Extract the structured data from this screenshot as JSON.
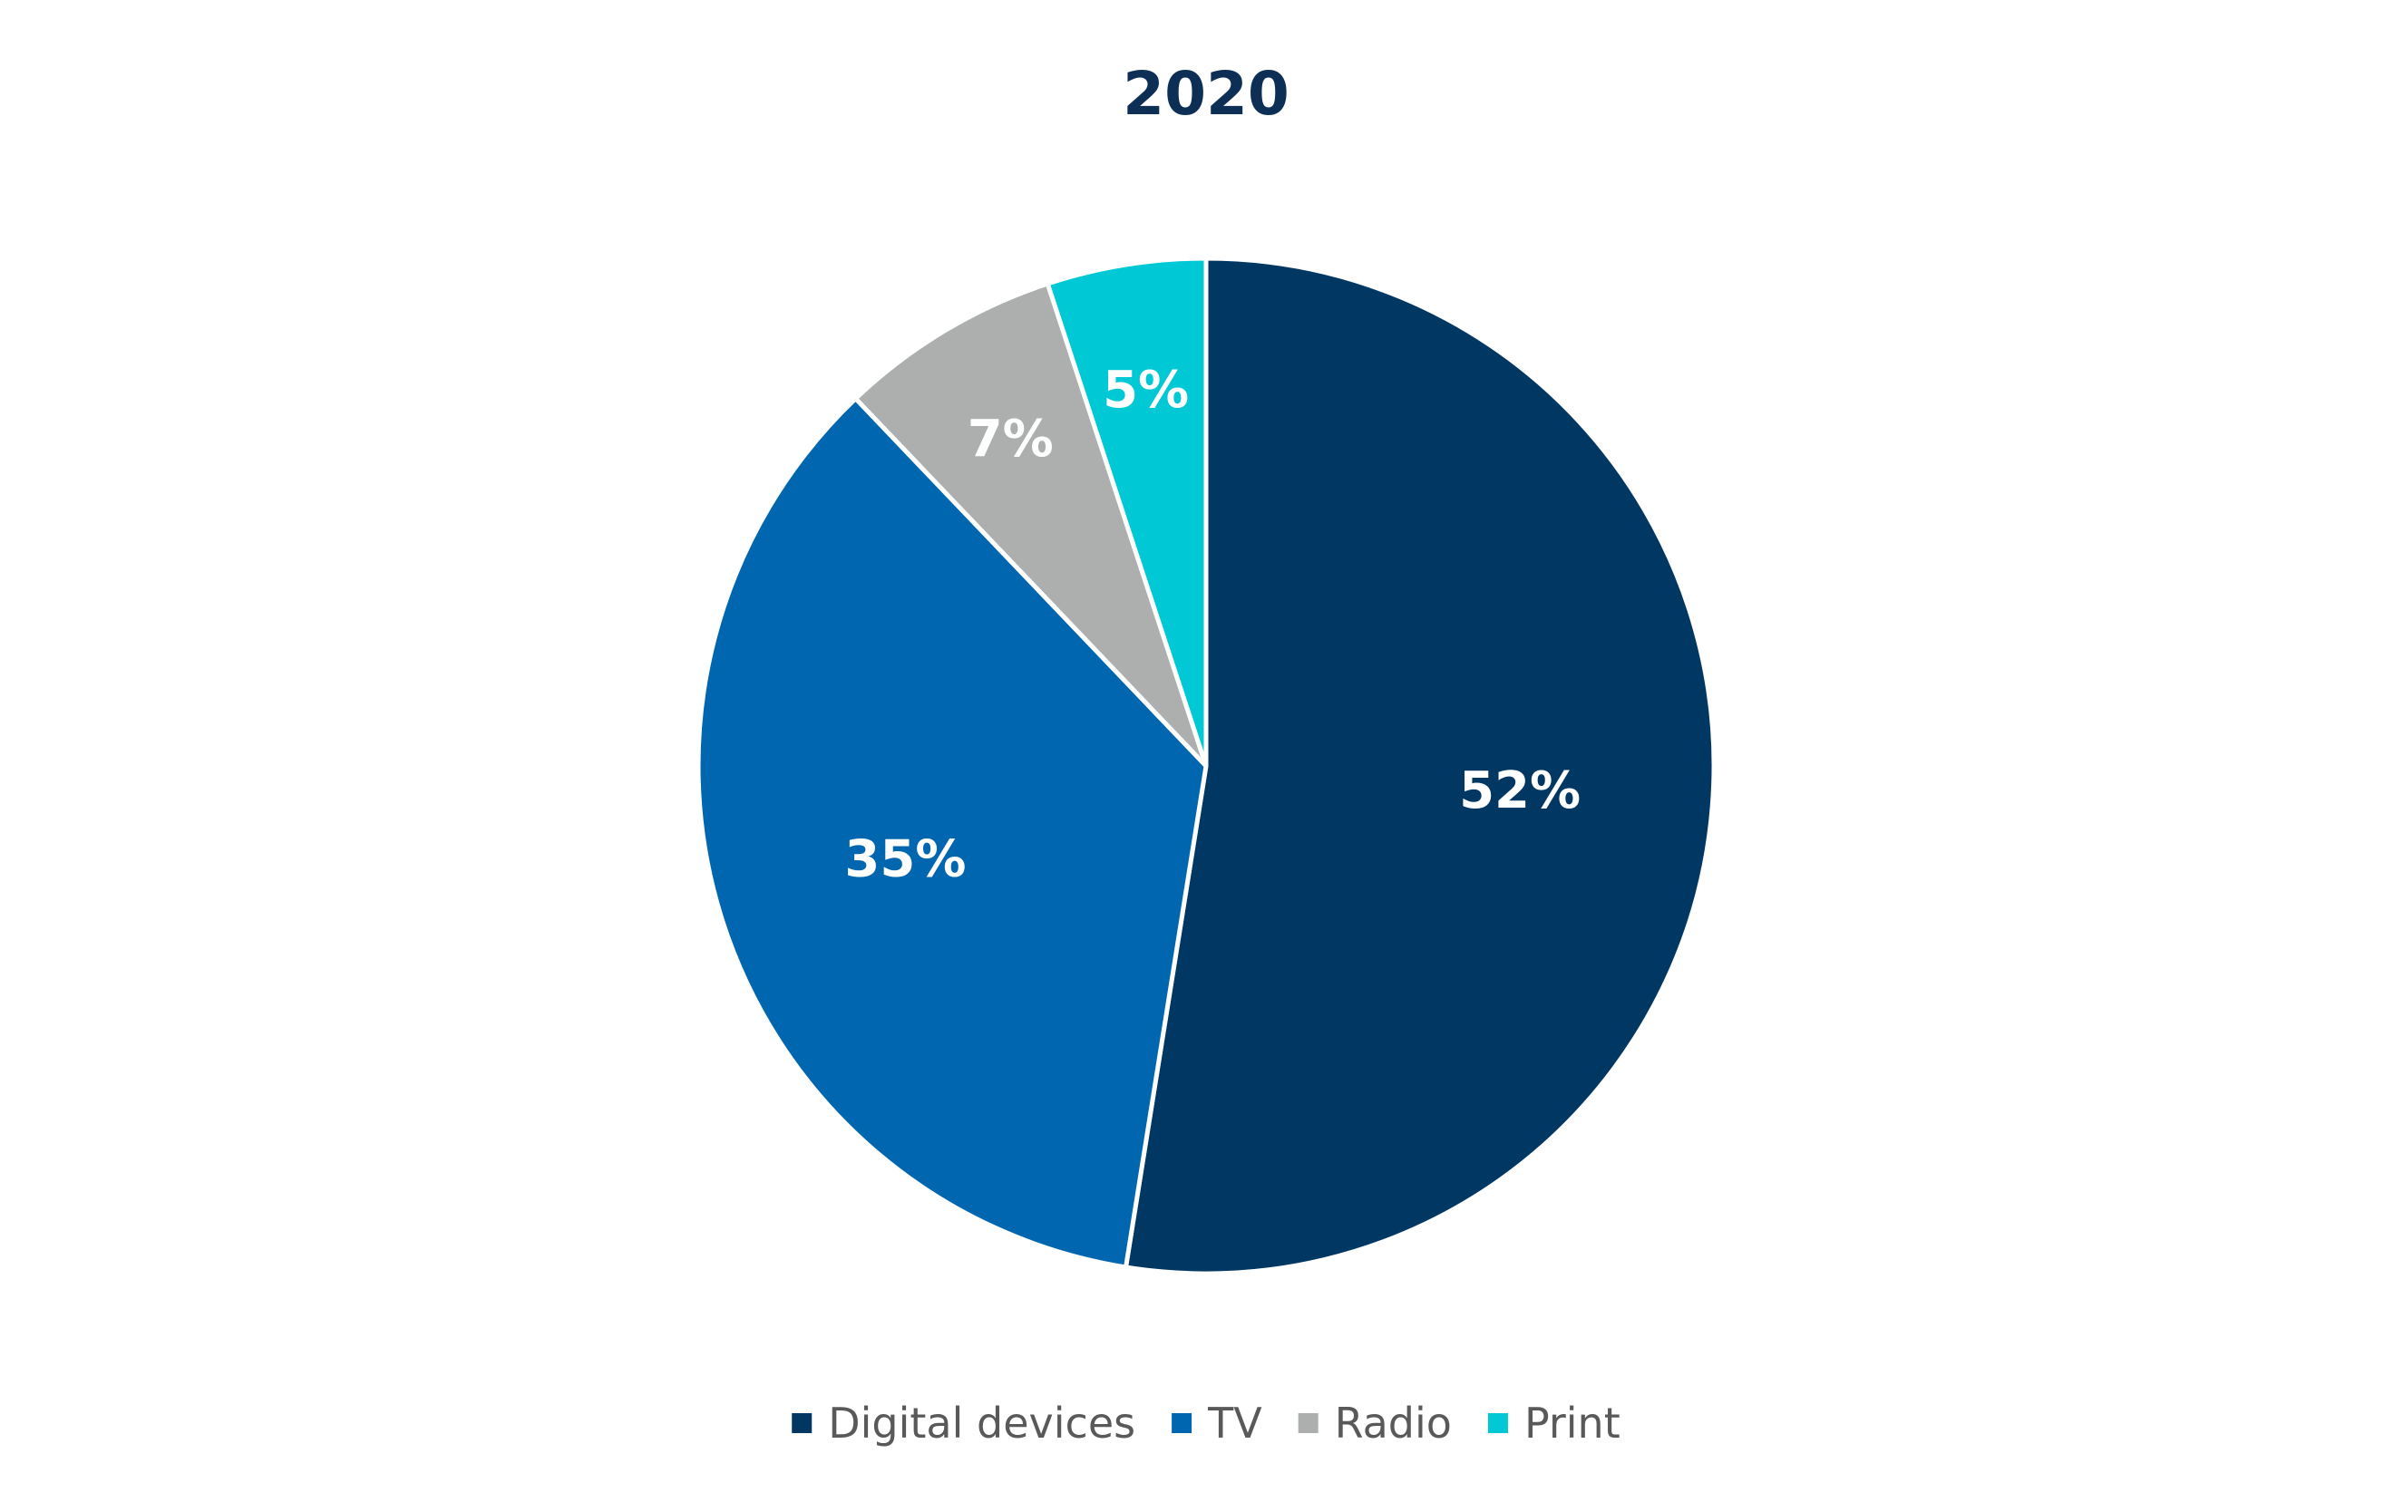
{
  "chart_data": {
    "type": "pie",
    "title": "2020",
    "categories": [
      "Digital devices",
      "TV",
      "Radio",
      "Print"
    ],
    "values": [
      52,
      35,
      7,
      5
    ],
    "labels": [
      "52%",
      "35%",
      "7%",
      "5%"
    ],
    "colors": [
      "#003763",
      "#0066b0",
      "#adafaf",
      "#00c8d4"
    ],
    "title_color": "#0d2f55",
    "legend_position": "bottom",
    "start_angle": "12 o'clock",
    "direction": "clockwise"
  }
}
